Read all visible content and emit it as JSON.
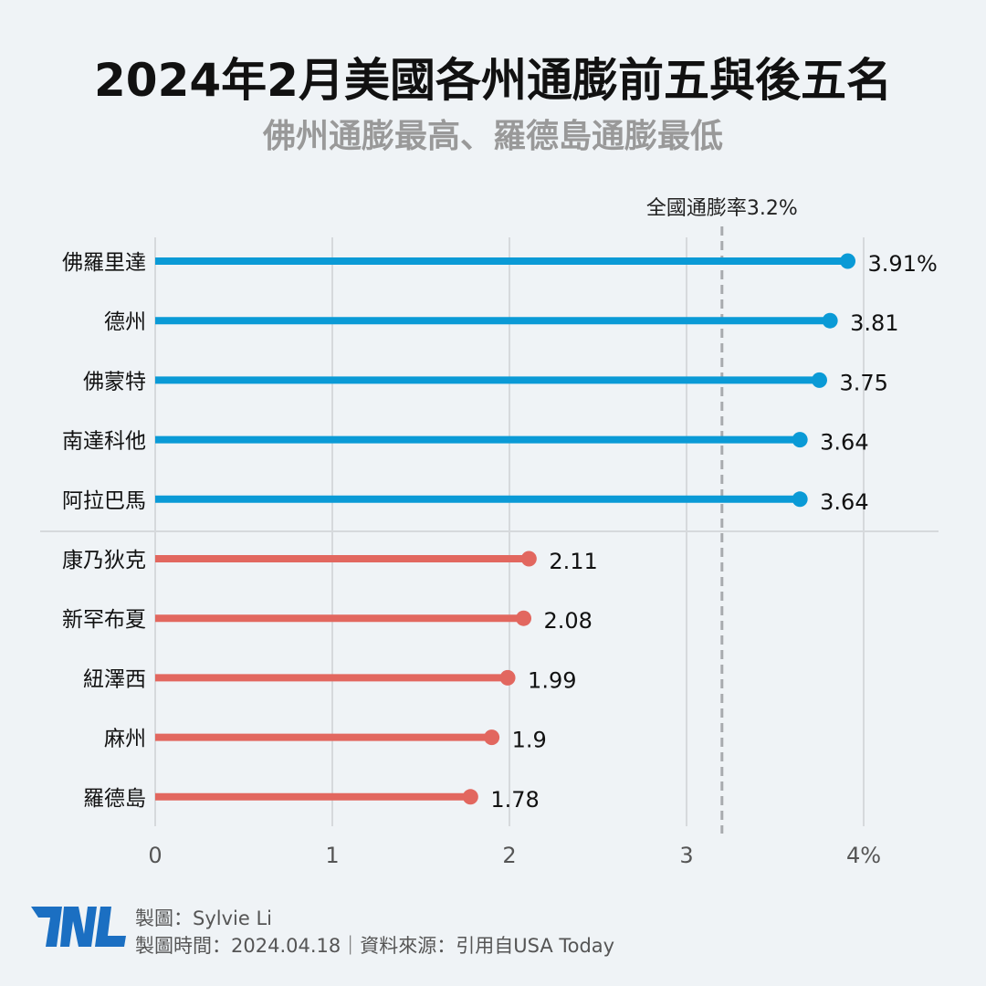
{
  "title": "2024年2月美國各州通膨前五與後五名",
  "subtitle": "佛州通膨最高、羅德島通膨最低",
  "footer": {
    "author": "製圖：Sylvie Li",
    "date_source": "製圖時間：2024.04.18｜資料來源：引用自USA Today",
    "logo": "TNL"
  },
  "chart_data": {
    "type": "lollipop-bar",
    "orientation": "horizontal",
    "categories": [
      "佛羅里達",
      "德州",
      "佛蒙特",
      "南達科他",
      "阿拉巴馬",
      "康乃狄克",
      "新罕布夏",
      "紐澤西",
      "麻州",
      "羅德島"
    ],
    "values": [
      3.91,
      3.81,
      3.75,
      3.64,
      3.64,
      2.11,
      2.08,
      1.99,
      1.9,
      1.78
    ],
    "value_labels": [
      "3.91%",
      "3.81",
      "3.75",
      "3.64",
      "3.64",
      "2.11",
      "2.08",
      "1.99",
      "1.9",
      "1.78"
    ],
    "groups": [
      "top",
      "top",
      "top",
      "top",
      "top",
      "bottom",
      "bottom",
      "bottom",
      "bottom",
      "bottom"
    ],
    "colors": {
      "top": "#0a9ad6",
      "bottom": "#e2675f"
    },
    "xlim": [
      0,
      4
    ],
    "xticks": [
      "0",
      "1",
      "2",
      "3",
      "4%"
    ],
    "xtick_values": [
      0,
      1,
      2,
      3,
      4
    ],
    "grid": true,
    "reference_line": {
      "value": 3.2,
      "label": "全國通膨率3.2%",
      "style": "dashed"
    }
  }
}
